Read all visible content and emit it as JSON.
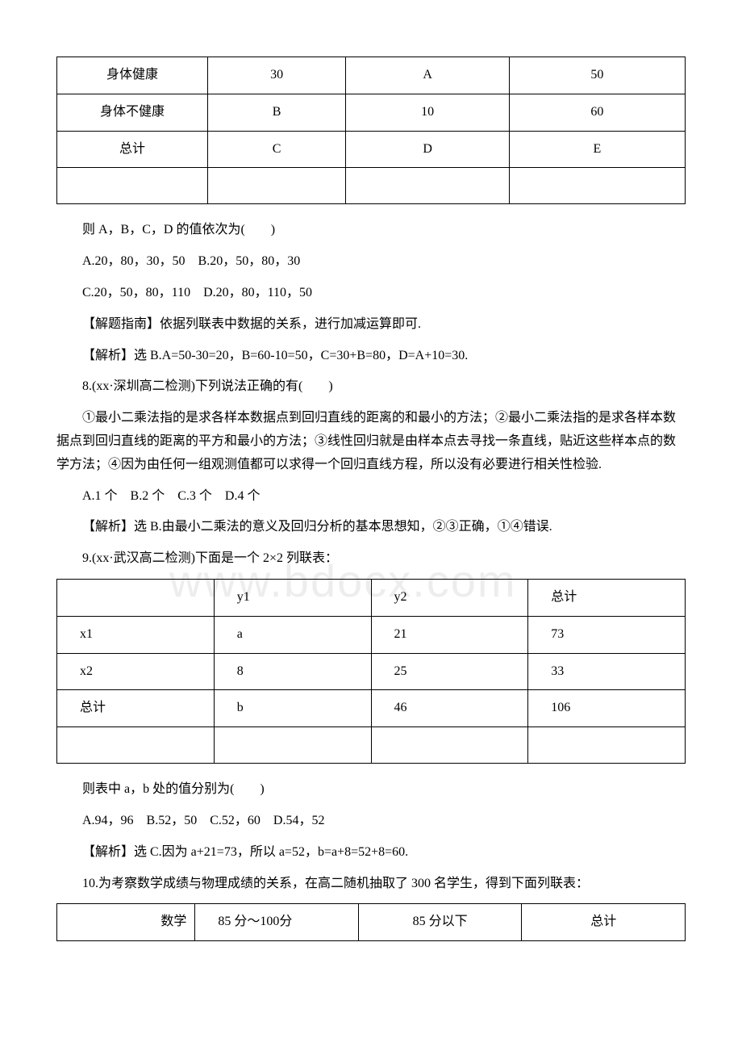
{
  "watermark": "www.bdocx.com",
  "table1": {
    "rows": [
      [
        "身体健康",
        "30",
        "A",
        "50"
      ],
      [
        "身体不健康",
        "B",
        "10",
        "60"
      ],
      [
        "总计",
        "C",
        "D",
        "E"
      ],
      [
        "",
        "",
        "",
        ""
      ]
    ]
  },
  "p1": "则 A，B，C，D 的值依次为(　　)",
  "p2": "A.20，80，30，50　B.20，50，80，30",
  "p3": "C.20，50，80，110　D.20，80，110，50",
  "p4": "【解题指南】依据列联表中数据的关系，进行加减运算即可.",
  "p5": "【解析】选 B.A=50-30=20，B=60-10=50，C=30+B=80，D=A+10=30.",
  "p6": "8.(xx·深圳高二检测)下列说法正确的有(　　)",
  "p7": "①最小二乘法指的是求各样本数据点到回归直线的距离的和最小的方法；②最小二乘法指的是求各样本数据点到回归直线的距离的平方和最小的方法；③线性回归就是由样本点去寻找一条直线，贴近这些样本点的数学方法；④因为由任何一组观测值都可以求得一个回归直线方程，所以没有必要进行相关性检验.",
  "p8": "A.1 个　B.2 个　C.3 个　D.4 个",
  "p9": "【解析】选 B.由最小二乘法的意义及回归分析的基本思想知，②③正确，①④错误.",
  "p10": "9.(xx·武汉高二检测)下面是一个 2×2 列联表：",
  "table2": {
    "rows": [
      [
        "",
        "y1",
        "y2",
        "总计"
      ],
      [
        "x1",
        "a",
        "21",
        "73"
      ],
      [
        "x2",
        "8",
        "25",
        "33"
      ],
      [
        "总计",
        "b",
        "46",
        "106"
      ],
      [
        "",
        "",
        "",
        ""
      ]
    ]
  },
  "p11": "则表中 a，b 处的值分别为(　　)",
  "p12": "A.94，96　B.52，50　C.52，60　D.54，52",
  "p13": "【解析】选 C.因为 a+21=73，所以 a=52，b=a+8=52+8=60.",
  "p14": "10.为考察数学成绩与物理成绩的关系，在高二随机抽取了 300 名学生，得到下面列联表：",
  "table3": {
    "rows": [
      [
        "数学",
        "85 分～100分",
        "85 分以下",
        "总计"
      ]
    ]
  }
}
